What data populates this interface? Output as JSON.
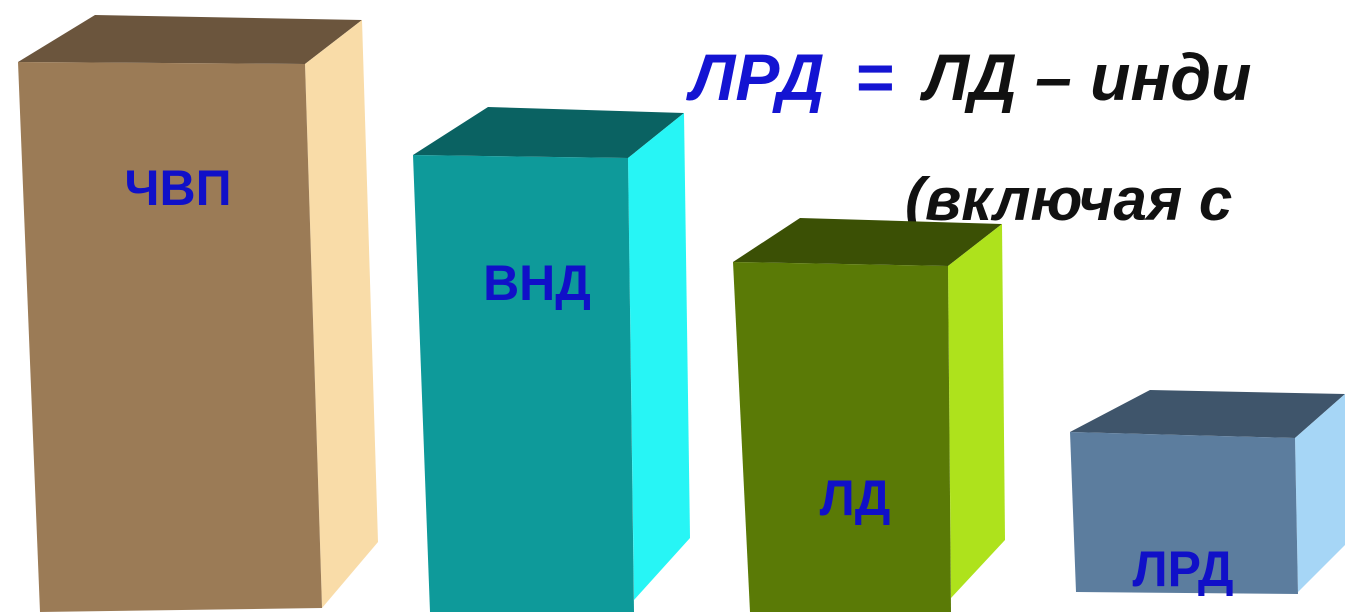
{
  "formula": {
    "lhs": "ЛРД",
    "eq": "=",
    "rhs": "ЛД – инди",
    "line2": "(включая с"
  },
  "bars": [
    {
      "label": "ЧВП",
      "front": "#9b7b56",
      "top": "#6b553d",
      "side": "#f9dca8"
    },
    {
      "label": "ВНД",
      "front": "#0e9a9a",
      "top": "#0a6262",
      "side": "#27f5f5"
    },
    {
      "label": "ЛД",
      "front": "#5a7a06",
      "top": "#3b5005",
      "side": "#aee21c"
    },
    {
      "label": "ЛРД",
      "front": "#5c7d9e",
      "top": "#3f556b",
      "side": "#a6d6f6"
    }
  ],
  "colors": {
    "formula_blue": "#1414d2",
    "formula_black": "#111111",
    "label_blue": "#1010c8"
  }
}
